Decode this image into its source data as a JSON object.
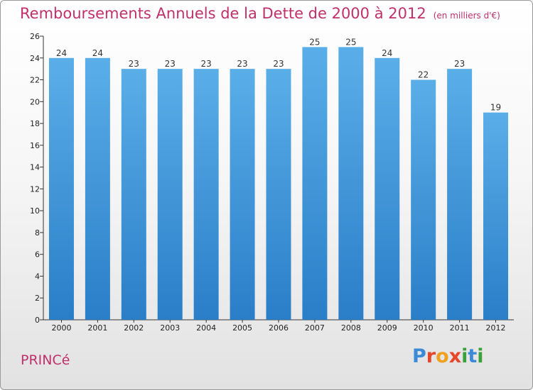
{
  "header": {
    "title": "Remboursements Annuels de la Dette de 2000 à 2012",
    "unit": "(en milliers d'€)"
  },
  "footer": {
    "city": "PRINCé",
    "logo": "Proxiti"
  },
  "colors": {
    "bar_top": "#5aaee8",
    "bar_bottom": "#2a7ec8",
    "title": "#c0306a",
    "logo": [
      "#3b8ad8",
      "#e8462a",
      "#f0a020",
      "#e8462a",
      "#3aa03a",
      "#3b8ad8",
      "#3aa03a"
    ]
  },
  "chart_data": {
    "type": "bar",
    "categories": [
      "2000",
      "2001",
      "2002",
      "2003",
      "2004",
      "2005",
      "2006",
      "2007",
      "2008",
      "2009",
      "2010",
      "2011",
      "2012"
    ],
    "values": [
      24,
      24,
      23,
      23,
      23,
      23,
      23,
      25,
      25,
      24,
      22,
      23,
      19
    ],
    "title": "Remboursements Annuels de la Dette de 2000 à 2012",
    "xlabel": "",
    "ylabel": "",
    "ylim": [
      0,
      26
    ],
    "yticks": [
      0,
      2,
      4,
      6,
      8,
      10,
      12,
      14,
      16,
      18,
      20,
      22,
      24,
      26
    ],
    "grid": false,
    "data_labels": true
  }
}
